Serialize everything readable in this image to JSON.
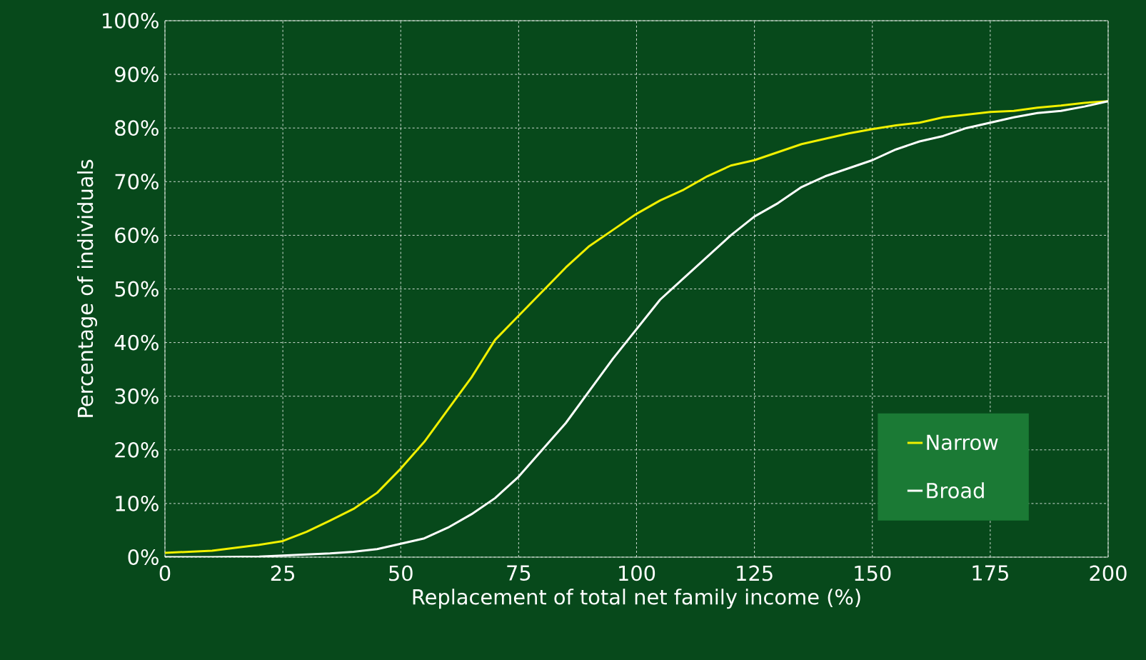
{
  "chart_data": {
    "type": "line",
    "xlabel": "Replacement of total net family income (%)",
    "ylabel": "Percentage of individuals",
    "x": [
      0,
      10,
      20,
      25,
      30,
      35,
      40,
      45,
      50,
      55,
      60,
      65,
      70,
      75,
      80,
      85,
      90,
      95,
      100,
      105,
      110,
      115,
      120,
      125,
      130,
      135,
      140,
      145,
      150,
      155,
      160,
      165,
      170,
      175,
      180,
      185,
      190,
      195,
      200
    ],
    "series": [
      {
        "name": "Narrow",
        "color": "#f0f000",
        "values": [
          0.8,
          1.2,
          2.3,
          3,
          4.7,
          6.8,
          9,
          12,
          16.5,
          21.5,
          27.5,
          33.5,
          40.5,
          45,
          49.5,
          54,
          58,
          61,
          64,
          66.5,
          68.5,
          71,
          73,
          74,
          75.5,
          77,
          78,
          79,
          79.8,
          80.5,
          81,
          82,
          82.5,
          83,
          83.2,
          83.8,
          84.2,
          84.7,
          85
        ]
      },
      {
        "name": "Broad",
        "color": "#ffffff",
        "values": [
          0,
          0,
          0.1,
          0.3,
          0.5,
          0.7,
          1,
          1.5,
          2.5,
          3.5,
          5.5,
          8,
          11,
          15,
          20,
          25,
          31,
          37,
          42.5,
          48,
          52,
          56,
          60,
          63.5,
          66,
          69,
          71,
          72.5,
          74,
          76,
          77.5,
          78.5,
          80,
          81,
          82,
          82.8,
          83.2,
          84,
          85
        ]
      }
    ],
    "xlim": [
      0,
      200
    ],
    "ylim": [
      0,
      100
    ],
    "xticks": [
      0,
      25,
      50,
      75,
      100,
      125,
      150,
      175,
      200
    ],
    "yticks": [
      {
        "value": 0,
        "label": "0%"
      },
      {
        "value": 10,
        "label": "10%"
      },
      {
        "value": 20,
        "label": "20%"
      },
      {
        "value": 30,
        "label": "30%"
      },
      {
        "value": 40,
        "label": "40%"
      },
      {
        "value": 50,
        "label": "50%"
      },
      {
        "value": 60,
        "label": "60%"
      },
      {
        "value": 70,
        "label": "70%"
      },
      {
        "value": 80,
        "label": "80%"
      },
      {
        "value": 90,
        "label": "90%"
      },
      {
        "value": 100,
        "label": "100%"
      }
    ],
    "grid": true,
    "legend": "bottom right"
  }
}
